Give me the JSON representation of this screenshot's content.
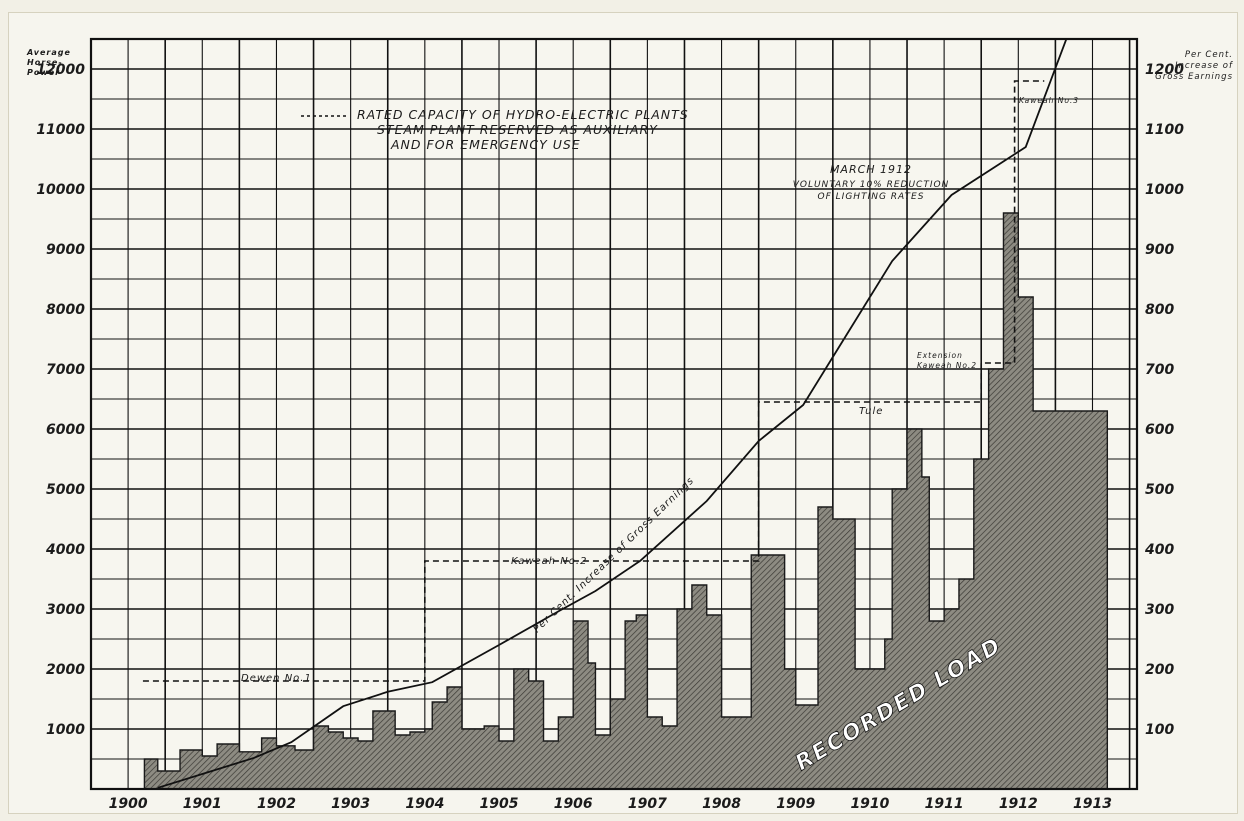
{
  "chart_data": {
    "type": "area",
    "left_axis_label": [
      "Average",
      "Horse-",
      "Power"
    ],
    "right_axis_label": [
      "Per Cent.",
      "Increase of",
      "Gross Earnings"
    ],
    "y_left_ticks": [
      "1000",
      "2000",
      "3000",
      "4000",
      "5000",
      "6000",
      "7000",
      "8000",
      "9000",
      "10000",
      "11000",
      "12000"
    ],
    "y_right_ticks": [
      "100",
      "200",
      "300",
      "400",
      "500",
      "600",
      "700",
      "800",
      "900",
      "1000",
      "1100",
      "1200"
    ],
    "x_ticks": [
      "1900",
      "1901",
      "1902",
      "1903",
      "1904",
      "1905",
      "1906",
      "1907",
      "1908",
      "1909",
      "1910",
      "1911",
      "1912",
      "1913"
    ],
    "ylim_left": [
      0,
      12500
    ],
    "ylim_right": [
      0,
      1250
    ],
    "xlim": [
      1900.0,
      1914.1
    ],
    "grid": true,
    "legend_text": [
      "RATED CAPACITY OF HYDRO-ELECTRIC PLANTS",
      "STEAM PLANT RESERVED AS AUXILIARY",
      "AND FOR EMERGENCY USE"
    ],
    "annotation_march_1912": [
      "MARCH 1912",
      "VOLUNTARY 10% REDUCTION",
      "OF LIGHTING RATES"
    ],
    "labels": {
      "power_house_1": "Dewen No.1",
      "power_house_2": "Kaweah No.2",
      "power_house_3": "Tule",
      "power_house_4": [
        "Extension",
        "Kaweah No.2"
      ],
      "power_house_5": "Kaweah No.3",
      "earnings_curve": "Per Cent. Increase of Gross Earnings",
      "load_curve": "RECORDED LOAD"
    },
    "series": [
      {
        "name": "Per Cent. Increase of Gross Earnings",
        "axis": "right",
        "x": [
          1900.9,
          1901.5,
          1902.2,
          1902.7,
          1903.4,
          1904.0,
          1904.6,
          1905.5,
          1906.3,
          1906.8,
          1907.4,
          1908.3,
          1909.0,
          1909.6,
          1910.2,
          1910.8,
          1911.6,
          1912.6,
          1913.3
        ],
        "values": [
          2,
          25,
          52,
          78,
          138,
          162,
          178,
          240,
          296,
          330,
          380,
          480,
          580,
          640,
          760,
          880,
          990,
          1070,
          1300
        ]
      },
      {
        "name": "RECORDED LOAD",
        "axis": "left",
        "x": [
          1900.72,
          1900.9,
          1901.2,
          1901.5,
          1901.7,
          1902.0,
          1902.3,
          1902.5,
          1902.75,
          1903.0,
          1903.2,
          1903.4,
          1903.6,
          1903.8,
          1904.0,
          1904.1,
          1904.3,
          1904.5,
          1904.6,
          1904.8,
          1905.0,
          1905.3,
          1905.5,
          1905.7,
          1905.9,
          1906.1,
          1906.3,
          1906.5,
          1906.7,
          1906.8,
          1907.0,
          1907.2,
          1907.35,
          1907.5,
          1907.7,
          1907.9,
          1908.1,
          1908.3,
          1908.5,
          1908.7,
          1908.9,
          1909.1,
          1909.35,
          1909.5,
          1909.6,
          1909.8,
          1910.0,
          1910.3,
          1910.5,
          1910.7,
          1910.8,
          1911.0,
          1911.2,
          1911.3,
          1911.5,
          1911.7,
          1911.9,
          1912.1,
          1912.3,
          1912.5,
          1912.7,
          1912.9,
          1913.1,
          1913.25,
          1913.35,
          1913.5,
          1913.6
        ],
        "values": [
          500,
          300,
          650,
          550,
          750,
          620,
          850,
          720,
          650,
          1050,
          950,
          850,
          800,
          1300,
          1300,
          900,
          950,
          1000,
          1450,
          1700,
          1000,
          1050,
          800,
          2000,
          1800,
          800,
          1200,
          2800,
          2100,
          900,
          1500,
          2800,
          2900,
          1200,
          1050,
          3000,
          3400,
          2900,
          1200,
          1200,
          3900,
          3900,
          2000,
          1400,
          1400,
          4700,
          4500,
          2000,
          2000,
          2500,
          5000,
          6000,
          5200,
          2800,
          3000,
          3500,
          5500,
          7000,
          9600,
          8200,
          6300,
          6300,
          6300,
          6300,
          6300,
          6300,
          6300
        ]
      },
      {
        "name": "RATED CAPACITY OF HYDRO-ELECTRIC PLANTS",
        "axis": "left",
        "style": "dashed-step",
        "x": [
          1900.7,
          1904.5,
          1904.5,
          1909.0,
          1909.0,
          1912.0,
          1912.0,
          1912.45,
          1912.45,
          1912.85
        ],
        "values": [
          1800,
          1800,
          3800,
          3800,
          6450,
          6450,
          7100,
          7100,
          11800,
          11800
        ]
      }
    ]
  }
}
